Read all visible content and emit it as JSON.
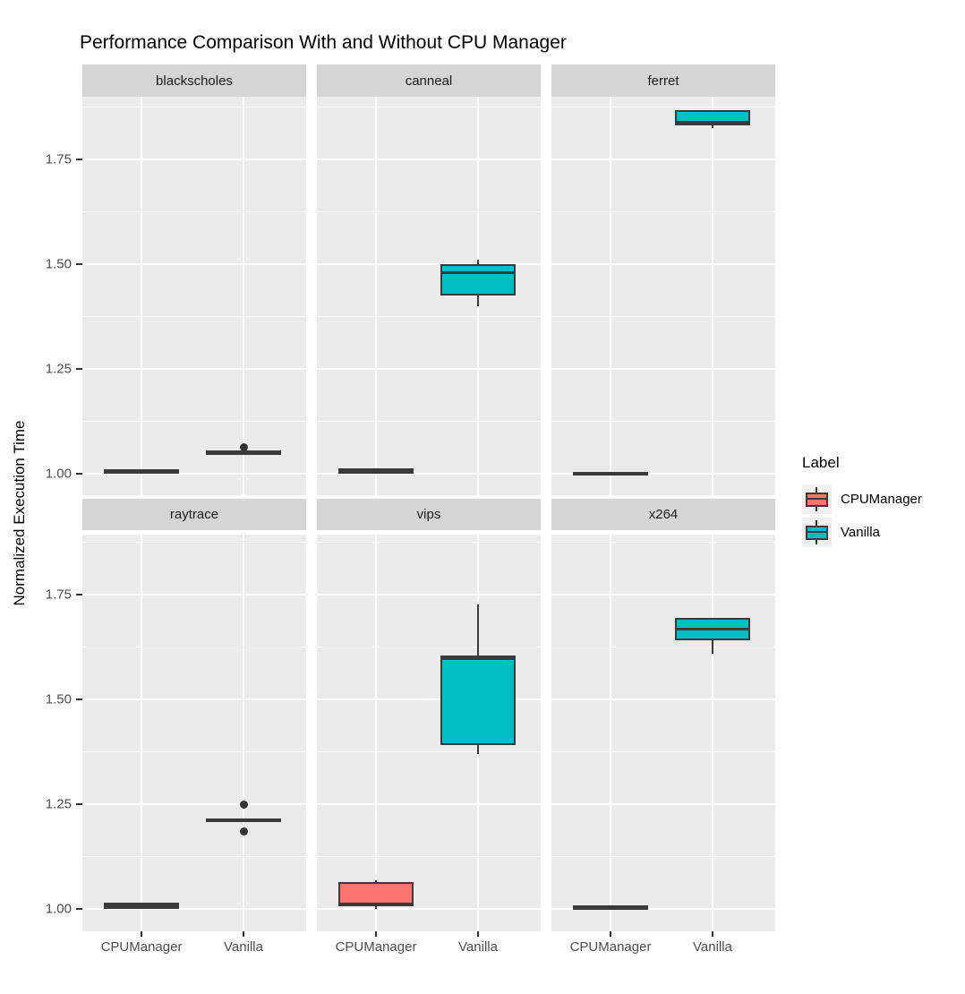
{
  "title": "Performance Comparison With and Without CPU Manager",
  "y_axis": {
    "label": "Normalized Execution Time",
    "tick_labels": [
      "1.00",
      "1.25",
      "1.50",
      "1.75"
    ],
    "major_breaks": [
      1.0,
      1.25,
      1.5,
      1.75
    ],
    "minor_breaks": [
      1.125,
      1.375,
      1.625,
      1.875
    ],
    "range": [
      0.95,
      1.9
    ]
  },
  "x_axis": {
    "categories": [
      "CPUManager",
      "Vanilla"
    ]
  },
  "legend": {
    "title": "Label",
    "items": [
      {
        "label": "CPUManager",
        "color": "#F8766D"
      },
      {
        "label": "Vanilla",
        "color": "#00BFC4"
      }
    ]
  },
  "colors": {
    "box_stroke": "#3A3A3A",
    "panel_bg": "#EBEBEB",
    "strip_bg": "#D5D5D5",
    "gridline": "#FFFFFF",
    "tick_text": "#4D4D4D"
  },
  "chart_data": {
    "type": "boxplot",
    "title": "Performance Comparison With and Without CPU Manager",
    "ylabel": "Normalized Execution Time",
    "ylim": [
      0.95,
      1.9
    ],
    "grid": "on",
    "legend_position": "right",
    "categories": [
      "CPUManager",
      "Vanilla"
    ],
    "facets": [
      {
        "label": "blackscholes",
        "groups": [
          {
            "label": "CPUManager",
            "min": 1.0,
            "q1": 1.002,
            "median": 1.006,
            "q3": 1.01,
            "max": 1.012,
            "outliers": []
          },
          {
            "label": "Vanilla",
            "min": 1.046,
            "q1": 1.048,
            "median": 1.051,
            "q3": 1.055,
            "max": 1.057,
            "outliers": [
              1.064
            ]
          }
        ]
      },
      {
        "label": "canneal",
        "groups": [
          {
            "label": "CPUManager",
            "min": 0.999,
            "q1": 1.0,
            "median": 1.006,
            "q3": 1.012,
            "max": 1.013,
            "outliers": []
          },
          {
            "label": "Vanilla",
            "min": 1.4,
            "q1": 1.425,
            "median": 1.48,
            "q3": 1.5,
            "max": 1.51,
            "outliers": []
          }
        ]
      },
      {
        "label": "ferret",
        "groups": [
          {
            "label": "CPUManager",
            "min": 0.999,
            "q1": 1.0,
            "median": 1.002,
            "q3": 1.005,
            "max": 1.006,
            "outliers": []
          },
          {
            "label": "Vanilla",
            "min": 1.824,
            "q1": 1.832,
            "median": 1.838,
            "q3": 1.868,
            "max": 1.868,
            "outliers": []
          }
        ]
      },
      {
        "label": "raytrace",
        "groups": [
          {
            "label": "CPUManager",
            "min": 0.998,
            "q1": 0.999,
            "median": 1.008,
            "q3": 1.016,
            "max": 1.018,
            "outliers": []
          },
          {
            "label": "Vanilla",
            "min": 1.207,
            "q1": 1.209,
            "median": 1.212,
            "q3": 1.216,
            "max": 1.218,
            "outliers": [
              1.25,
              1.185
            ]
          }
        ]
      },
      {
        "label": "vips",
        "groups": [
          {
            "label": "CPUManager",
            "min": 1.0,
            "q1": 1.006,
            "median": 1.012,
            "q3": 1.064,
            "max": 1.068,
            "outliers": []
          },
          {
            "label": "Vanilla",
            "min": 1.37,
            "q1": 1.39,
            "median": 1.598,
            "q3": 1.605,
            "max": 1.727,
            "outliers": []
          }
        ]
      },
      {
        "label": "x264",
        "groups": [
          {
            "label": "CPUManager",
            "min": 1.0,
            "q1": 1.001,
            "median": 1.004,
            "q3": 1.008,
            "max": 1.009,
            "outliers": []
          },
          {
            "label": "Vanilla",
            "min": 1.61,
            "q1": 1.64,
            "median": 1.667,
            "q3": 1.695,
            "max": 1.695,
            "outliers": []
          }
        ]
      }
    ]
  }
}
